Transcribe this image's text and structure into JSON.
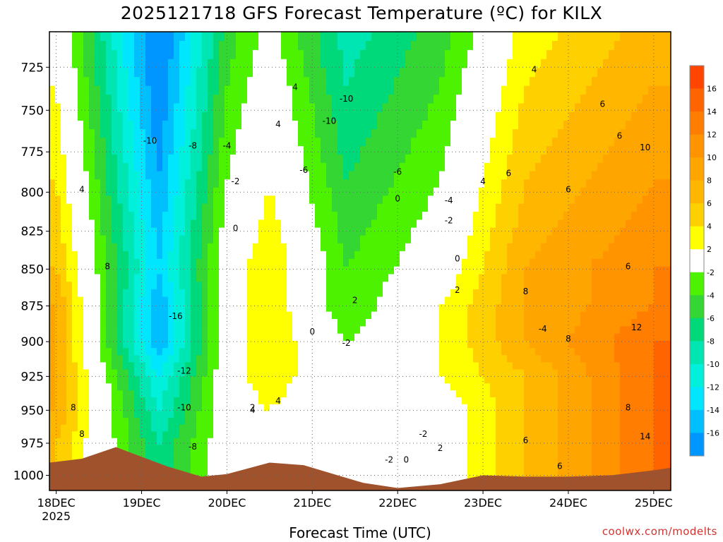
{
  "chart_data": {
    "type": "heatmap",
    "title": "2025121718 GFS Forecast Temperature (ºC) for KILX",
    "xlabel": "Forecast Time (UTC)",
    "ylabel": "",
    "x_ticks": [
      "18DEC",
      "19DEC",
      "20DEC",
      "21DEC",
      "22DEC",
      "23DEC",
      "24DEC",
      "25DEC"
    ],
    "x_tick_sublabel": "2025",
    "x_range_days": [
      17.92,
      25.2
    ],
    "y_ticks": [
      725,
      750,
      775,
      800,
      825,
      850,
      875,
      900,
      925,
      950,
      975,
      1000
    ],
    "ylim": [
      1012,
      705
    ],
    "y_scale": "log",
    "grid": true,
    "colorbar": {
      "levels": [
        16,
        14,
        12,
        10,
        8,
        6,
        4,
        2,
        -2,
        -4,
        -6,
        -8,
        -10,
        -12,
        -14,
        -16
      ],
      "colors": [
        "#ff4500",
        "#ff6400",
        "#ff7d00",
        "#ff9400",
        "#ffa500",
        "#ffb600",
        "#ffd000",
        "#ffff00",
        "#ffffff",
        "#4cf200",
        "#33d633",
        "#00d97a",
        "#00e6b2",
        "#00f0dc",
        "#00e6ff",
        "#00bfff",
        "#0096ff"
      ]
    },
    "series": [
      {
        "name": "",
        "description": "temperature by pressure level over forecast time",
        "columns_by_day": [
          {
            "day": 18.0,
            "temps_850_to_975": [
              6,
              8,
              8,
              8,
              8,
              6
            ]
          },
          {
            "day": 19.2,
            "temps_850_to_975": [
              -14,
              -16,
              -16,
              -12,
              -10,
              -8
            ]
          },
          {
            "day": 20.0,
            "temps_850_to_975": [
              0,
              0,
              0,
              0,
              0,
              0
            ]
          },
          {
            "day": 20.5,
            "temps_850_to_975": [
              4,
              4,
              4,
              4,
              2,
              2
            ]
          },
          {
            "day": 21.4,
            "temps_850_to_975": [
              -4,
              -4,
              -2,
              -2,
              -2,
              -2
            ]
          },
          {
            "day": 22.5,
            "temps_850_to_975": [
              0,
              2,
              2,
              2,
              0,
              0
            ]
          },
          {
            "day": 23.5,
            "temps_850_to_975": [
              8,
              8,
              8,
              6,
              6,
              6
            ]
          },
          {
            "day": 25.0,
            "temps_850_to_975": [
              12,
              12,
              14,
              14,
              14,
              14
            ]
          }
        ]
      }
    ],
    "contour_labels": [
      "4",
      "4",
      "4",
      "4",
      "6",
      "6",
      "6",
      "6",
      "8",
      "8",
      "8",
      "10",
      "12",
      "14",
      "8",
      "8",
      "8",
      "6",
      "-10",
      "-10",
      "-8",
      "-6",
      "-16",
      "-12",
      "-10",
      "-8",
      "-4",
      "-2",
      "0",
      "0",
      "2",
      "0",
      "4",
      "4",
      "2",
      "-10",
      "-6",
      "-4",
      "-4",
      "-2",
      "0",
      "2",
      "-2",
      "-2",
      "-2",
      "0",
      "2",
      "4",
      "6",
      "6"
    ]
  },
  "credit": "coolwx.com/modelts"
}
